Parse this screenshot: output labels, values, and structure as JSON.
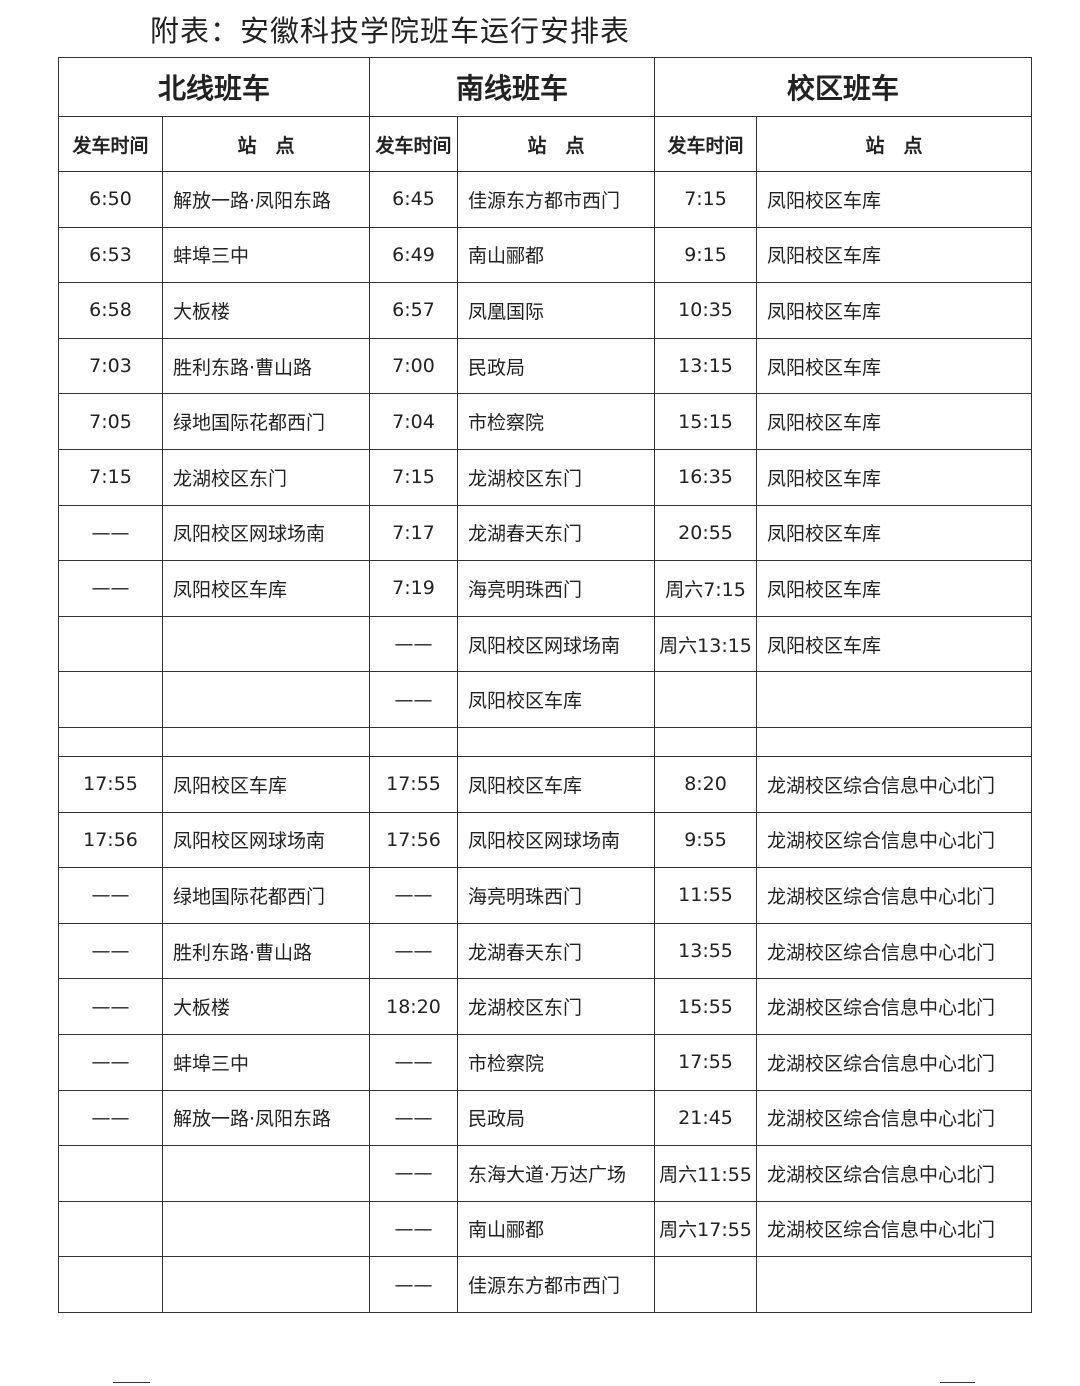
{
  "title": "附表：安徽科技学院班车运行安排表",
  "groups": [
    "北线班车",
    "南线班车",
    "校区班车"
  ],
  "subheaders": [
    "发车时间",
    "站　点",
    "发车时间",
    "站　点",
    "发车时间",
    "站　点"
  ],
  "rows_morning": [
    [
      "6:50",
      "解放一路·凤阳东路",
      "6:45",
      "佳源东方都市西门",
      "7:15",
      "凤阳校区车库"
    ],
    [
      "6:53",
      "蚌埠三中",
      "6:49",
      "南山郦都",
      "9:15",
      "凤阳校区车库"
    ],
    [
      "6:58",
      "大板楼",
      "6:57",
      "凤凰国际",
      "10:35",
      "凤阳校区车库"
    ],
    [
      "7:03",
      "胜利东路·曹山路",
      "7:00",
      "民政局",
      "13:15",
      "凤阳校区车库"
    ],
    [
      "7:05",
      "绿地国际花都西门",
      "7:04",
      "市检察院",
      "15:15",
      "凤阳校区车库"
    ],
    [
      "7:15",
      "龙湖校区东门",
      "7:15",
      "龙湖校区东门",
      "16:35",
      "凤阳校区车库"
    ],
    [
      "——",
      "凤阳校区网球场南",
      "7:17",
      "龙湖春天东门",
      "20:55",
      "凤阳校区车库"
    ],
    [
      "——",
      "凤阳校区车库",
      "7:19",
      "海亮明珠西门",
      "周六7:15",
      "凤阳校区车库"
    ],
    [
      "",
      "",
      "——",
      "凤阳校区网球场南",
      "周六13:15",
      "凤阳校区车库"
    ],
    [
      "",
      "",
      "——",
      "凤阳校区车库",
      "",
      ""
    ]
  ],
  "rows_evening": [
    [
      "17:55",
      "凤阳校区车库",
      "17:55",
      "凤阳校区车库",
      "8:20",
      "龙湖校区综合信息中心北门"
    ],
    [
      "17:56",
      "凤阳校区网球场南",
      "17:56",
      "凤阳校区网球场南",
      "9:55",
      "龙湖校区综合信息中心北门"
    ],
    [
      "——",
      "绿地国际花都西门",
      "——",
      "海亮明珠西门",
      "11:55",
      "龙湖校区综合信息中心北门"
    ],
    [
      "——",
      "胜利东路·曹山路",
      "——",
      "龙湖春天东门",
      "13:55",
      "龙湖校区综合信息中心北门"
    ],
    [
      "——",
      "大板楼",
      "18:20",
      "龙湖校区东门",
      "15:55",
      "龙湖校区综合信息中心北门"
    ],
    [
      "——",
      "蚌埠三中",
      "——",
      "市检察院",
      "17:55",
      "龙湖校区综合信息中心北门"
    ],
    [
      "——",
      "解放一路·凤阳东路",
      "——",
      "民政局",
      "21:45",
      "龙湖校区综合信息中心北门"
    ],
    [
      "",
      "",
      "——",
      "东海大道·万达广场",
      "周六11:55",
      "龙湖校区综合信息中心北门"
    ],
    [
      "",
      "",
      "——",
      "南山郦都",
      "周六17:55",
      "龙湖校区综合信息中心北门"
    ],
    [
      "",
      "",
      "——",
      "佳源东方都市西门",
      "",
      ""
    ]
  ]
}
